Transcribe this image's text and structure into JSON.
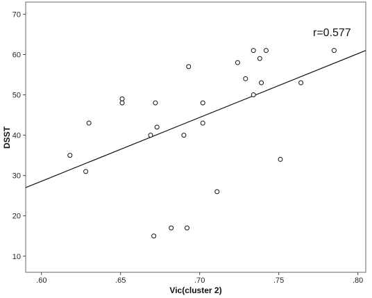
{
  "chart_data": {
    "type": "scatter",
    "title": "",
    "xlabel": "Vic(cluster 2)",
    "ylabel": "DSST",
    "xlim": [
      0.59,
      0.805
    ],
    "ylim": [
      6,
      73
    ],
    "xticks": [
      0.6,
      0.65,
      0.7,
      0.75,
      0.8
    ],
    "xtick_labels": [
      ".60",
      ".65",
      ".70",
      ".75",
      ".80"
    ],
    "yticks": [
      10,
      20,
      30,
      40,
      50,
      60,
      70
    ],
    "ytick_labels": [
      "10",
      "20",
      "30",
      "40",
      "50",
      "60",
      "70"
    ],
    "grid": false,
    "annotation": "r=0.577",
    "fit_line": {
      "x": [
        0.59,
        0.805
      ],
      "y": [
        27,
        61
      ]
    },
    "points": [
      {
        "x": 0.618,
        "y": 35
      },
      {
        "x": 0.628,
        "y": 31
      },
      {
        "x": 0.63,
        "y": 43
      },
      {
        "x": 0.651,
        "y": 49
      },
      {
        "x": 0.651,
        "y": 48
      },
      {
        "x": 0.669,
        "y": 40
      },
      {
        "x": 0.671,
        "y": 15
      },
      {
        "x": 0.672,
        "y": 48
      },
      {
        "x": 0.673,
        "y": 42
      },
      {
        "x": 0.682,
        "y": 17
      },
      {
        "x": 0.69,
        "y": 40
      },
      {
        "x": 0.692,
        "y": 17
      },
      {
        "x": 0.693,
        "y": 57
      },
      {
        "x": 0.702,
        "y": 48
      },
      {
        "x": 0.702,
        "y": 43
      },
      {
        "x": 0.711,
        "y": 26
      },
      {
        "x": 0.724,
        "y": 58
      },
      {
        "x": 0.729,
        "y": 54
      },
      {
        "x": 0.734,
        "y": 61
      },
      {
        "x": 0.734,
        "y": 50
      },
      {
        "x": 0.738,
        "y": 59
      },
      {
        "x": 0.739,
        "y": 53
      },
      {
        "x": 0.742,
        "y": 61
      },
      {
        "x": 0.751,
        "y": 34
      },
      {
        "x": 0.764,
        "y": 53
      },
      {
        "x": 0.785,
        "y": 61
      }
    ]
  }
}
